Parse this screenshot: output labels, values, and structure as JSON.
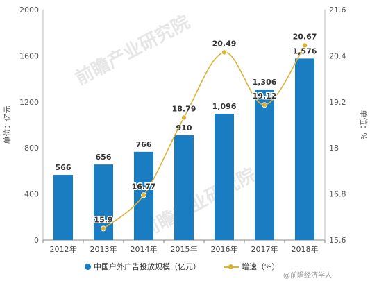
{
  "chart_data": {
    "type": "bar",
    "categories": [
      "2012年",
      "2013年",
      "2014年",
      "2015年",
      "2016年",
      "2017年",
      "2018年"
    ],
    "series": [
      {
        "name": "中国户外广告投放规模（亿元）",
        "type": "bar",
        "axis": "left",
        "color": "#1a7cc1",
        "values": [
          566,
          656,
          766,
          910,
          1096,
          1306,
          1576
        ],
        "labels": [
          "566",
          "656",
          "766",
          "910",
          "1,096",
          "1,306",
          "1,576"
        ]
      },
      {
        "name": "增速（%）",
        "type": "line",
        "axis": "right",
        "color": "#d9b23a",
        "values": [
          null,
          15.9,
          16.77,
          18.79,
          20.49,
          19.12,
          20.67
        ],
        "labels": [
          "",
          "15.9",
          "16.77",
          "18.79",
          "20.49",
          "19.12",
          "20.67"
        ]
      }
    ],
    "ylabel": "单位：亿元",
    "y2label": "单位：%",
    "ylim": [
      0,
      2000
    ],
    "yticks": [
      "0",
      "400",
      "800",
      "1200",
      "1600",
      "2000"
    ],
    "y2lim": [
      15.6,
      21.6
    ],
    "y2ticks": [
      "15.6",
      "16.8",
      "18",
      "19.2",
      "20.4",
      "21.6"
    ],
    "grid": false,
    "legend": "bottom"
  },
  "watermark": "前瞻产业研究院",
  "footer_text": "@前瞻经济学人"
}
